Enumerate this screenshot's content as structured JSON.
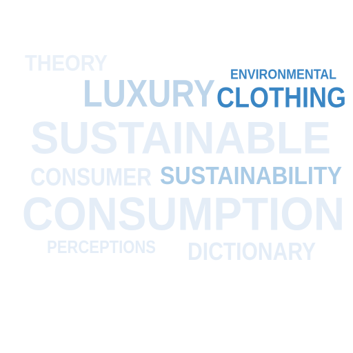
{
  "word_cloud": {
    "words": [
      {
        "key": "theory",
        "text": "THEORY",
        "color": "#e9f0f8"
      },
      {
        "key": "luxury",
        "text": "LUXURY",
        "color": "#bdd5ea"
      },
      {
        "key": "environmental",
        "text": "ENVIRONMENTAL",
        "color": "#3a86c4"
      },
      {
        "key": "clothing",
        "text": "CLOTHING",
        "color": "#3a86c4"
      },
      {
        "key": "sustainable",
        "text": "SUSTAINABLE",
        "color": "#e4edf7"
      },
      {
        "key": "consumer",
        "text": "CONSUMER",
        "color": "#e4edf7"
      },
      {
        "key": "sustainability",
        "text": "SUSTAINABILITY",
        "color": "#a9cbe6"
      },
      {
        "key": "consumption",
        "text": "CONSUMPTION",
        "color": "#e4edf7"
      },
      {
        "key": "perceptions",
        "text": "PERCEPTIONS",
        "color": "#e4edf7"
      },
      {
        "key": "dictionary",
        "text": "DICTIONARY",
        "color": "#e4edf7"
      }
    ]
  }
}
